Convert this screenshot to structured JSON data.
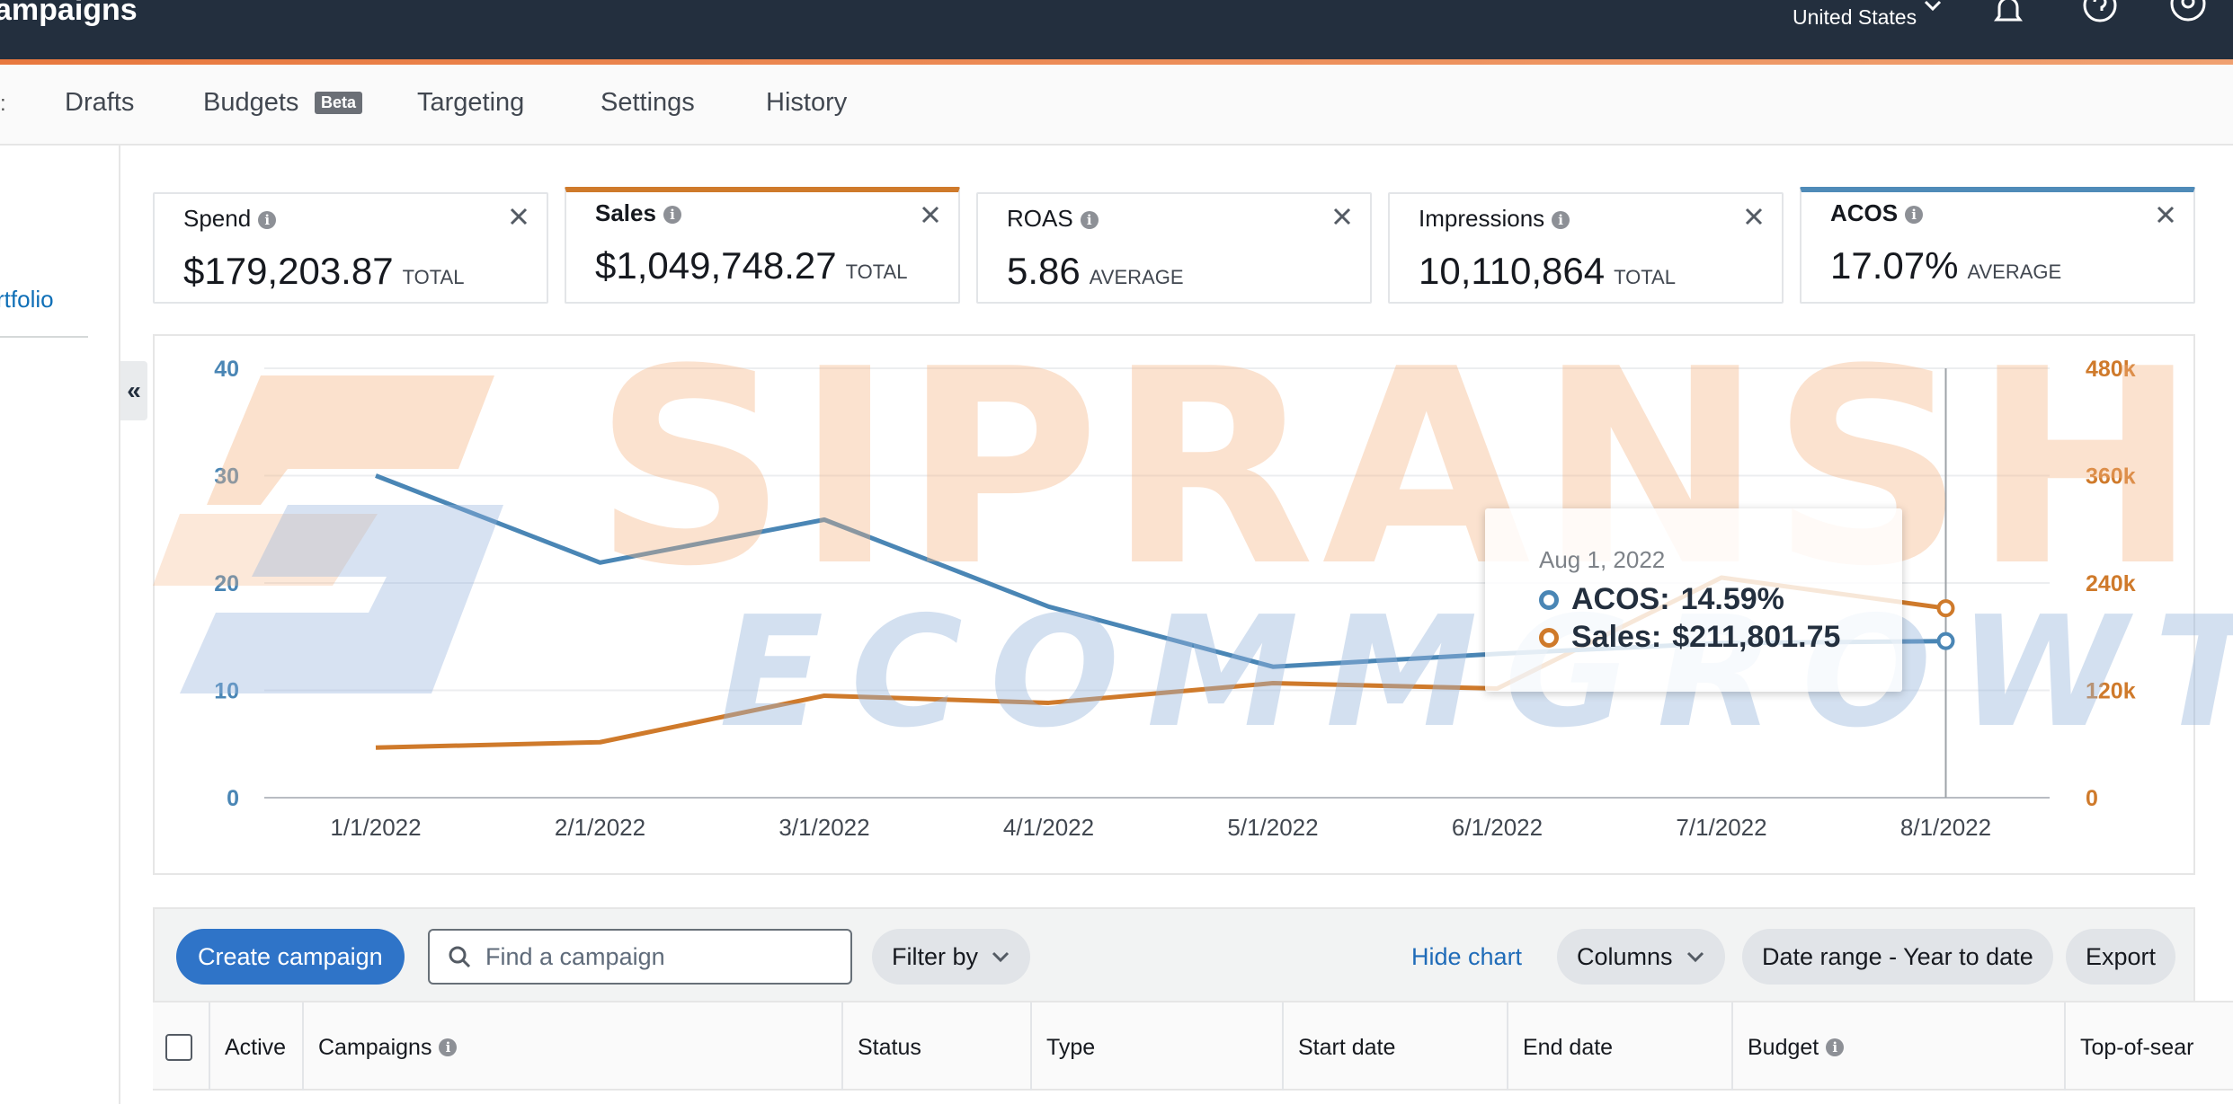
{
  "header": {
    "app_title": "ampaigns",
    "country": "United States",
    "icons": [
      "bell-icon",
      "help-icon",
      "account-icon"
    ]
  },
  "tabs": {
    "edge": ":",
    "drafts": "Drafts",
    "budgets": "Budgets",
    "budgets_badge": "Beta",
    "targeting": "Targeting",
    "settings": "Settings",
    "history": "History"
  },
  "sidebar": {
    "portfolio_link": "rtfolio",
    "collapse": "«"
  },
  "metrics": [
    {
      "label": "Spend",
      "value": "$179,203.87",
      "sub": "TOTAL"
    },
    {
      "label": "Sales",
      "value": "$1,049,748.27",
      "sub": "TOTAL"
    },
    {
      "label": "ROAS",
      "value": "5.86",
      "sub": "AVERAGE"
    },
    {
      "label": "Impressions",
      "value": "10,110,864",
      "sub": "TOTAL"
    },
    {
      "label": "ACOS",
      "value": "17.07%",
      "sub": "AVERAGE"
    }
  ],
  "colors": {
    "acos": "#4a86b5",
    "sales": "#cf7a2b",
    "primary": "#2f74c8",
    "topbar": "#232f3e"
  },
  "chart_data": {
    "type": "line",
    "x": [
      "1/1/2022",
      "2/1/2022",
      "3/1/2022",
      "4/1/2022",
      "5/1/2022",
      "6/1/2022",
      "7/1/2022",
      "8/1/2022"
    ],
    "y_left": {
      "ticks": [
        "0",
        "10",
        "20",
        "30",
        "40"
      ],
      "range": [
        0,
        40
      ]
    },
    "y_right": {
      "ticks": [
        "0",
        "120k",
        "240k",
        "360k",
        "480k"
      ],
      "range": [
        0,
        480000
      ]
    },
    "series": [
      {
        "name": "ACOS",
        "axis": "left",
        "values": [
          30.0,
          21.9,
          25.9,
          17.8,
          12.2,
          13.4,
          14.4,
          14.59
        ]
      },
      {
        "name": "Sales",
        "axis": "right",
        "values": [
          56000,
          62000,
          114000,
          106000,
          128000,
          122000,
          246000,
          211801.75
        ]
      }
    ],
    "grid": true
  },
  "tooltip": {
    "date": "Aug 1, 2022",
    "acos_label": "ACOS:",
    "acos_value": "14.59%",
    "sales_label": "Sales:",
    "sales_value": "$211,801.75"
  },
  "watermark": {
    "top": "SIPRANSH",
    "bottom": "ECOMMGROWTH"
  },
  "toolbar": {
    "create": "Create campaign",
    "search_placeholder": "Find a campaign",
    "filter": "Filter by",
    "hide_chart": "Hide chart",
    "columns": "Columns",
    "date_range": "Date range - Year to date",
    "export": "Export"
  },
  "table": {
    "columns": [
      "Active",
      "Campaigns",
      "Status",
      "Type",
      "Start date",
      "End date",
      "Budget",
      "Top-of-sear"
    ]
  }
}
